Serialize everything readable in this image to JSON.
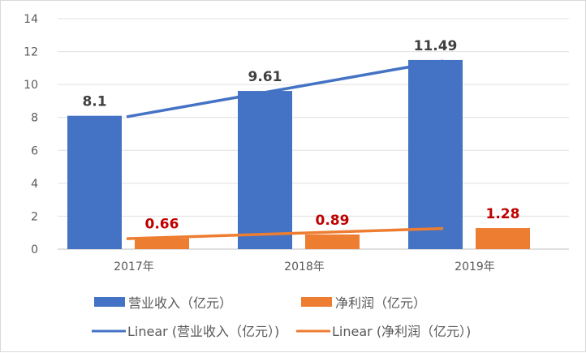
{
  "chart_data": {
    "type": "bar",
    "categories": [
      "2017年",
      "2018年",
      "2019年"
    ],
    "series": [
      {
        "name": "营业收入（亿元）",
        "values": [
          8.1,
          9.61,
          11.49
        ],
        "color": "#4472C4",
        "label_color": "#404040"
      },
      {
        "name": "净利润（亿元）",
        "values": [
          0.66,
          0.89,
          1.28
        ],
        "color": "#ED7D31",
        "label_color": "#C00000"
      }
    ],
    "trendlines": [
      {
        "name": "Linear (营业收入（亿元）)",
        "type": "linear",
        "series": 0,
        "color": "#4472C4"
      },
      {
        "name": "Linear (净利润（亿元）)",
        "type": "linear",
        "series": 1,
        "color": "#ED7D31"
      }
    ],
    "ylim": [
      0,
      14
    ],
    "yticks": [
      0,
      2,
      4,
      6,
      8,
      10,
      12,
      14
    ],
    "grid": true,
    "legend": "bottom"
  }
}
